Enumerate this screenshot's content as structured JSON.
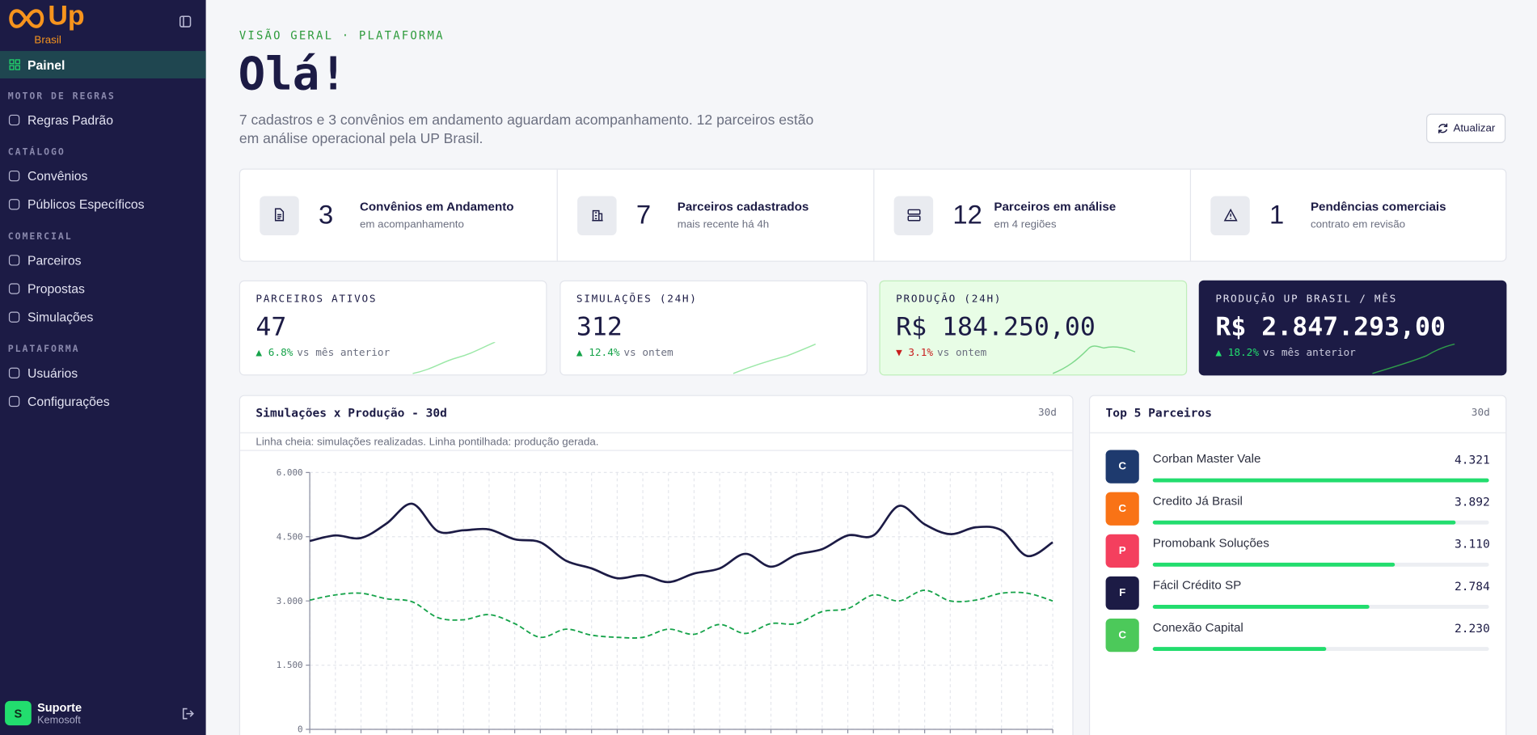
{
  "sidebar": {
    "logo_text": "Up",
    "logo_sub": "Brasil",
    "active_item": "Painel",
    "groups": [
      {
        "heading": "MOTOR DE REGRAS",
        "items": [
          "Regras Padrão"
        ]
      },
      {
        "heading": "CATÁLOGO",
        "items": [
          "Convênios",
          "Públicos Específicos"
        ]
      },
      {
        "heading": "COMERCIAL",
        "items": [
          "Parceiros",
          "Propostas",
          "Simulações"
        ]
      },
      {
        "heading": "PLATAFORMA",
        "items": [
          "Usuários",
          "Configurações"
        ]
      }
    ],
    "user": {
      "initial": "S",
      "name": "Suporte",
      "org": "Kemosoft"
    }
  },
  "header": {
    "kicker": "VISÃO GERAL · PLATAFORMA",
    "title": "Olá!",
    "description": "7 cadastros e 3 convênios em andamento aguardam acompanhamento. 12 parceiros estão em análise operacional pela UP Brasil.",
    "refresh_button": "Atualizar"
  },
  "summary_stats": [
    {
      "value": 3,
      "title": "Convênios em Andamento",
      "subtitle": "em acompanhamento"
    },
    {
      "value": 7,
      "title": "Parceiros cadastrados",
      "subtitle": "mais recente há 4h"
    },
    {
      "value": 12,
      "title": "Parceiros em análise",
      "subtitle": "em 4 regiões"
    },
    {
      "value": 1,
      "title": "Pendências comerciais",
      "subtitle": "contrato em revisão"
    }
  ],
  "kpis": [
    {
      "label": "PARCEIROS ATIVOS",
      "value": "47",
      "change": "▲ 6.8%",
      "comparison": "vs mês anterior"
    },
    {
      "label": "SIMULAÇÕES (24H)",
      "value": "312",
      "change": "▲ 12.4%",
      "comparison": "vs ontem"
    },
    {
      "label": "PRODUÇÃO (24H)",
      "value": "R$ 184.250,00",
      "change": "▼ 3.1%",
      "comparison": "vs ontem"
    },
    {
      "label": "PRODUÇÃO UP BRASIL / MÊS",
      "value": "R$ 2.847.293,00",
      "change": "▲ 18.2%",
      "comparison": "vs mês anterior"
    }
  ],
  "chart_data": {
    "type": "line",
    "title": "Simulações x Produção - 30d",
    "period": "30d",
    "subtitle": "Linha cheia: simulações realizadas. Linha pontilhada: produção gerada.",
    "categories": [
      null,
      null,
      null,
      null,
      null,
      null,
      null,
      null,
      null,
      null,
      null,
      null,
      null,
      null,
      null,
      null,
      null,
      null,
      null,
      null,
      null,
      null,
      null,
      null,
      null,
      null,
      null,
      null,
      null,
      null
    ],
    "series": [
      {
        "color": "#1c1b45",
        "dashed": false,
        "values": [
          4400,
          4530,
          4470,
          4810,
          5270,
          4630,
          4650,
          4670,
          4440,
          4370,
          3940,
          3760,
          3530,
          3600,
          3440,
          3640,
          3760,
          4100,
          3800,
          4080,
          4210,
          4530,
          4530,
          5220,
          4790,
          4560,
          4720,
          4650,
          4050,
          4370
        ]
      },
      {
        "color": "#16a34a",
        "dashed": true,
        "values": [
          3020,
          3140,
          3180,
          3050,
          2980,
          2610,
          2560,
          2680,
          2470,
          2150,
          2340,
          2200,
          2150,
          2150,
          2340,
          2220,
          2450,
          2240,
          2470,
          2470,
          2750,
          2820,
          3140,
          3000,
          3250,
          3000,
          3020,
          3180,
          3180,
          3000
        ]
      }
    ],
    "ylim": [
      0,
      6000
    ],
    "yticks": [
      0,
      {
        "value": 1500,
        "label": "1.500"
      },
      {
        "value": 3000,
        "label": "3.000"
      },
      {
        "value": 4500,
        "label": "4.500"
      },
      {
        "value": 6000,
        "label": "6.000"
      }
    ],
    "grid": true
  },
  "top_partners": {
    "title": "Top 5 Parceiros",
    "period": "30d",
    "bar_color": "#22dd6e",
    "items": [
      {
        "initial": "C",
        "name": "Corban Master Vale",
        "value": 4321,
        "value_label": "4.321",
        "color": "#1e3a6e"
      },
      {
        "initial": "C",
        "name": "Credito Já Brasil",
        "value": 3892,
        "value_label": "3.892",
        "color": "#f97316"
      },
      {
        "initial": "P",
        "name": "Promobank Soluções",
        "value": 3110,
        "value_label": "3.110",
        "color": "#f43f5e"
      },
      {
        "initial": "F",
        "name": "Fácil Crédito SP",
        "value": 2784,
        "value_label": "2.784",
        "color": "#1c1b45"
      },
      {
        "initial": "C",
        "name": "Conexão Capital",
        "value": 2230,
        "value_label": "2.230",
        "color": "#4cc95a"
      }
    ]
  }
}
